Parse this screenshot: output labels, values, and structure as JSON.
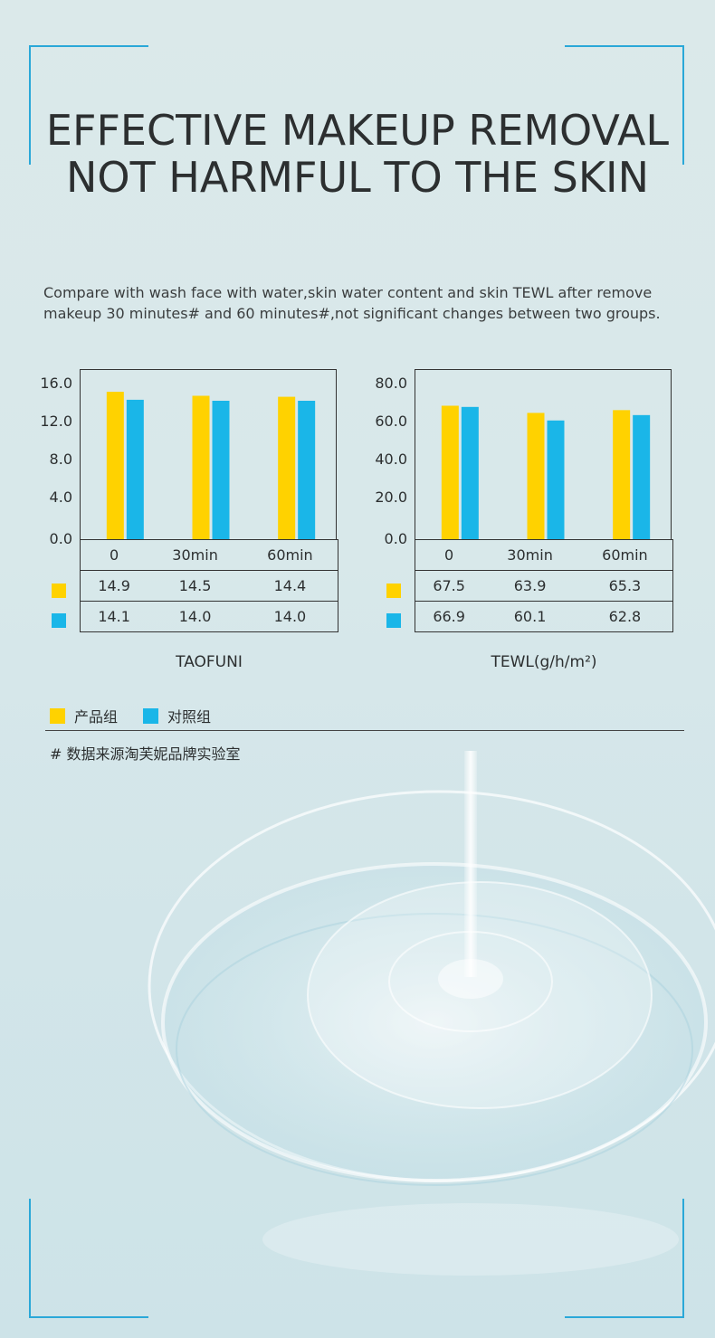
{
  "colors": {
    "product": "#ffd200",
    "control": "#1ab6e8",
    "accent": "#2aa8d8"
  },
  "headline": {
    "line1": "EFFECTIVE MAKEUP REMOVAL",
    "line2": "NOT HARMFUL TO THE SKIN"
  },
  "intro": "Compare with wash face with water,skin water content and skin TEWL after remove makeup 30 minutes# and 60 minutes#,not significant changes between two groups.",
  "chart_data": [
    {
      "type": "bar",
      "xlabel": "TAOFUNI",
      "categories": [
        "0",
        "30min",
        "60min"
      ],
      "yticks": [
        "0.0",
        "4.0",
        "8.0",
        "12.0",
        "16.0"
      ],
      "ylim": [
        0,
        16
      ],
      "series": [
        {
          "name": "产品组",
          "values": [
            14.9,
            14.5,
            14.4
          ],
          "labels": [
            "14.9",
            "14.5",
            "14.4"
          ]
        },
        {
          "name": "对照组",
          "values": [
            14.1,
            14.0,
            14.0
          ],
          "labels": [
            "14.1",
            "14.0",
            "14.0"
          ]
        }
      ]
    },
    {
      "type": "bar",
      "xlabel": "TEWL(g/h/m²)",
      "categories": [
        "0",
        "30min",
        "60min"
      ],
      "yticks": [
        "0.0",
        "20.0",
        "40.0",
        "60.0",
        "80.0"
      ],
      "ylim": [
        0,
        80
      ],
      "series": [
        {
          "name": "产品组",
          "values": [
            67.5,
            63.9,
            65.3
          ],
          "labels": [
            "67.5",
            "63.9",
            "65.3"
          ]
        },
        {
          "name": "对照组",
          "values": [
            66.9,
            60.1,
            62.8
          ],
          "labels": [
            "66.9",
            "60.1",
            "62.8"
          ]
        }
      ]
    }
  ],
  "legend": {
    "product": "产品组",
    "control": "对照组"
  },
  "source_note": "# 数据来源淘芙妮品牌实验室"
}
